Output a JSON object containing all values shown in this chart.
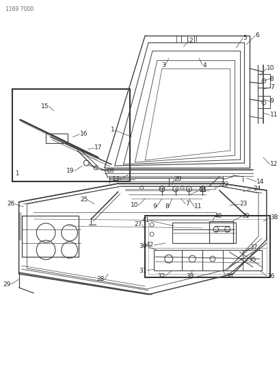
{
  "bg_color": "#ffffff",
  "line_color": "#404040",
  "text_color": "#222222",
  "header": "1169 7000",
  "figsize": [
    4.08,
    5.33
  ],
  "dpi": 100
}
